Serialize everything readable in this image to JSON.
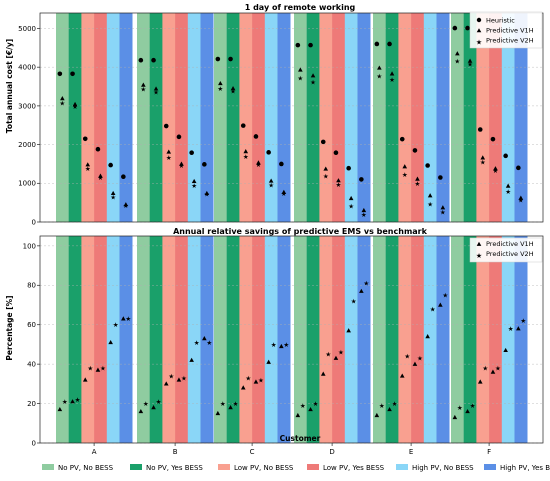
{
  "chart_data": [
    {
      "type": "scatter",
      "title": "1 day of remote working",
      "xlabel": "",
      "ylabel": "Total annual cost [€/y]",
      "ylim": [
        0,
        5400
      ],
      "yticks": [
        0,
        1000,
        2000,
        3000,
        4000,
        5000
      ],
      "grid": true,
      "legend_position": "top-right",
      "categories": [
        "A",
        "B",
        "C",
        "D",
        "E",
        "F"
      ],
      "scenarios": [
        "No PV, No BESS",
        "No PV, Yes BESS",
        "Low PV, No BESS",
        "Low PV, Yes BESS",
        "High PV, No BESS",
        "High PV, Yes BESS"
      ],
      "scenario_colors": [
        "#8fcca0",
        "#1aa06a",
        "#f9a090",
        "#ee7a78",
        "#8ad6f7",
        "#5b8fe6"
      ],
      "series": [
        {
          "name": "Heuristic",
          "marker": "circle",
          "values": [
            [
              3830,
              3830,
              2150,
              1880,
              1470,
              1170
            ],
            [
              4180,
              4180,
              2480,
              2200,
              1790,
              1490
            ],
            [
              4210,
              4210,
              2490,
              2210,
              1800,
              1500
            ],
            [
              4570,
              4570,
              2070,
              1790,
              1390,
              1100
            ],
            [
              4600,
              4600,
              2140,
              1850,
              1460,
              1150
            ],
            [
              5010,
              5010,
              2390,
              2140,
              1710,
              1400
            ]
          ]
        },
        {
          "name": "Predictive V1H",
          "marker": "triangle",
          "values": [
            [
              3190,
              3040,
              1480,
              1190,
              740,
              450
            ],
            [
              3540,
              3440,
              1810,
              1500,
              1050,
              740
            ],
            [
              3580,
              3450,
              1820,
              1530,
              1060,
              770
            ],
            [
              3930,
              3780,
              1370,
              1070,
              610,
              300
            ],
            [
              3980,
              3830,
              1430,
              1110,
              680,
              370
            ],
            [
              4350,
              4160,
              1660,
              1380,
              930,
              620
            ]
          ]
        },
        {
          "name": "Predictive V2H",
          "marker": "star",
          "values": [
            [
              3070,
              2980,
              1380,
              1150,
              640,
              430
            ],
            [
              3440,
              3360,
              1670,
              1460,
              940,
              720
            ],
            [
              3450,
              3380,
              1690,
              1480,
              950,
              740
            ],
            [
              3720,
              3620,
              1190,
              960,
              410,
              190
            ],
            [
              3770,
              3680,
              1230,
              990,
              460,
              260
            ],
            [
              4160,
              4080,
              1550,
              1330,
              790,
              570
            ]
          ]
        }
      ]
    },
    {
      "type": "scatter",
      "title": "Annual relative savings of predictive EMS vs benchmark",
      "xlabel": "Customer",
      "ylabel": "Percentage [%]",
      "ylim": [
        0,
        105
      ],
      "yticks": [
        0,
        20,
        40,
        60,
        80,
        100
      ],
      "grid": true,
      "legend_position": "top-right",
      "categories": [
        "A",
        "B",
        "C",
        "D",
        "E",
        "F"
      ],
      "scenarios": [
        "No PV, No BESS",
        "No PV, Yes BESS",
        "Low PV, No BESS",
        "Low PV, Yes BESS",
        "High PV, No BESS",
        "High PV, Yes BESS"
      ],
      "series": [
        {
          "name": "Predictive V1H",
          "marker": "triangle",
          "values": [
            [
              17,
              21,
              32,
              37,
              51,
              63
            ],
            [
              16,
              18,
              30,
              32,
              42,
              53
            ],
            [
              15,
              18,
              28,
              31,
              41,
              49
            ],
            [
              14,
              17,
              35,
              43,
              57,
              77
            ],
            [
              14,
              17,
              34,
              40,
              54,
              70
            ],
            [
              13,
              16,
              31,
              36,
              47,
              58
            ]
          ]
        },
        {
          "name": "Predictive V2H",
          "marker": "star",
          "values": [
            [
              21,
              22,
              38,
              38,
              60,
              63
            ],
            [
              20,
              21,
              34,
              33,
              51,
              51
            ],
            [
              20,
              20,
              33,
              32,
              50,
              50
            ],
            [
              19,
              20,
              45,
              46,
              72,
              81
            ],
            [
              19,
              20,
              44,
              43,
              68,
              75
            ],
            [
              18,
              19,
              38,
              38,
              58,
              62
            ]
          ]
        }
      ]
    }
  ],
  "bottom_legend": [
    {
      "label": "No PV, No BESS",
      "color": "#8fcca0"
    },
    {
      "label": "No PV, Yes BESS",
      "color": "#1aa06a"
    },
    {
      "label": "Low PV, No BESS",
      "color": "#f9a090"
    },
    {
      "label": "Low PV, Yes BESS",
      "color": "#ee7a78"
    },
    {
      "label": "High PV, No BESS",
      "color": "#8ad6f7"
    },
    {
      "label": "High PV, Yes BESS",
      "color": "#5b8fe6"
    }
  ]
}
